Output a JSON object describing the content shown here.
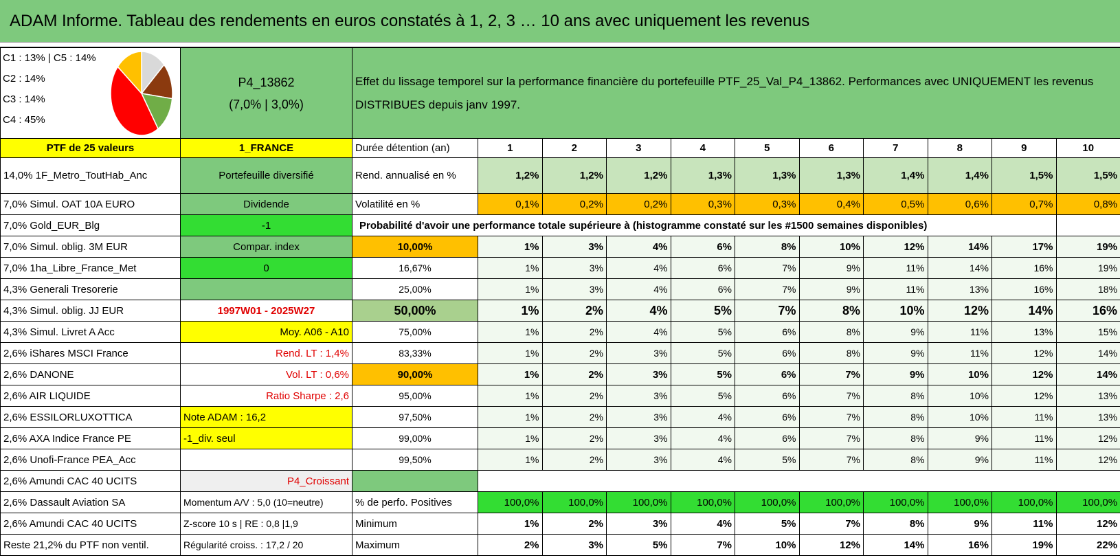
{
  "header": {
    "title": "ADAM Informe. Tableau des rendements en euros constatés à 1, 2, 3 … 10 ans avec uniquement les revenus"
  },
  "summary": {
    "legend": [
      "C1 : 13% | C5 : 14%",
      "C2 : 14%",
      "C3 : 14%",
      "C4 : 45%"
    ],
    "pie": {
      "values": [
        13,
        14,
        14,
        45,
        14
      ],
      "colors": [
        "#d9d9d9",
        "#8b3a0f",
        "#70ad47",
        "#ff0000",
        "#ffc000"
      ]
    },
    "code": "P4_13862",
    "params": "(7,0% | 3,0%)",
    "description": "Effet du lissage temporel sur la performance financière du portefeuille PTF_25_Val_P4_13862. Performances avec UNIQUEMENT les revenus DISTRIBUES depuis janv 1997."
  },
  "table": {
    "rows": [
      {
        "a": "PTF de 25 valeurs",
        "b": "1_FRANCE",
        "c": "Durée détention (an)",
        "values": [
          1,
          2,
          3,
          4,
          5,
          6,
          7,
          8,
          9,
          10
        ]
      },
      {
        "a": "14,0% 1F_Metro_ToutHab_Anc",
        "b": "Portefeuille diversifié",
        "c": "Rend. annualisé en %",
        "values": [
          "1,2%",
          "1,2%",
          "1,2%",
          "1,3%",
          "1,3%",
          "1,3%",
          "1,4%",
          "1,4%",
          "1,5%",
          "1,5%"
        ]
      },
      {
        "a": "7,0% Simul. OAT 10A EURO",
        "b": "Dividende",
        "c": "Volatilité en %",
        "values": [
          "0,1%",
          "0,2%",
          "0,2%",
          "0,3%",
          "0,3%",
          "0,4%",
          "0,5%",
          "0,6%",
          "0,7%",
          "0,8%"
        ]
      },
      {
        "a": "7,0% Gold_EUR_Blg",
        "b": "-1",
        "span": "Probabilité d'avoir une performance totale supérieure à (histogramme constaté sur les #1500 semaines disponibles)"
      },
      {
        "a": "7,0% Simul. oblig. 3M EUR",
        "b": "Compar. index",
        "c": "10,00%",
        "values": [
          "1%",
          "3%",
          "4%",
          "6%",
          "8%",
          "10%",
          "12%",
          "14%",
          "17%",
          "19%"
        ]
      },
      {
        "a": "7,0% 1ha_Libre_France_Met",
        "b": "0",
        "c": "16,67%",
        "values": [
          "1%",
          "3%",
          "4%",
          "6%",
          "7%",
          "9%",
          "11%",
          "14%",
          "16%",
          "19%"
        ]
      },
      {
        "a": "4,3% Generali Tresorerie",
        "c": "25,00%",
        "values": [
          "1%",
          "3%",
          "4%",
          "6%",
          "7%",
          "9%",
          "11%",
          "13%",
          "16%",
          "18%"
        ]
      },
      {
        "a": "4,3% Simul. oblig. JJ EUR",
        "b": "1997W01 - 2025W27",
        "c": "50,00%",
        "values": [
          "1%",
          "2%",
          "4%",
          "5%",
          "7%",
          "8%",
          "10%",
          "12%",
          "14%",
          "16%"
        ]
      },
      {
        "a": "4,3% Simul. Livret A Acc",
        "b": "Moy. A06 - A10",
        "c": "75,00%",
        "values": [
          "1%",
          "2%",
          "4%",
          "5%",
          "6%",
          "8%",
          "9%",
          "11%",
          "13%",
          "15%"
        ]
      },
      {
        "a": "2,6% iShares MSCI France",
        "b": "Rend. LT : 1,4%",
        "c": "83,33%",
        "values": [
          "1%",
          "2%",
          "3%",
          "5%",
          "6%",
          "8%",
          "9%",
          "11%",
          "12%",
          "14%"
        ]
      },
      {
        "a": "2,6% DANONE",
        "b": "Vol. LT : 0,6%",
        "c": "90,00%",
        "values": [
          "1%",
          "2%",
          "3%",
          "5%",
          "6%",
          "7%",
          "9%",
          "10%",
          "12%",
          "14%"
        ]
      },
      {
        "a": "2,6% AIR LIQUIDE",
        "b": "Ratio Sharpe : 2,6",
        "c": "95,00%",
        "values": [
          "1%",
          "2%",
          "3%",
          "5%",
          "6%",
          "7%",
          "8%",
          "10%",
          "12%",
          "13%"
        ]
      },
      {
        "a": "2,6% ESSILORLUXOTTICA",
        "b": "Note ADAM : 16,2",
        "c": "97,50%",
        "values": [
          "1%",
          "2%",
          "3%",
          "4%",
          "6%",
          "7%",
          "8%",
          "10%",
          "11%",
          "13%"
        ]
      },
      {
        "a": "2,6% AXA Indice France PE",
        "b": "-1_div. seul",
        "c": "99,00%",
        "values": [
          "1%",
          "2%",
          "3%",
          "4%",
          "6%",
          "7%",
          "8%",
          "9%",
          "11%",
          "12%"
        ]
      },
      {
        "a": "2,6% Unofi-France PEA_Acc",
        "c": "99,50%",
        "values": [
          "1%",
          "2%",
          "3%",
          "4%",
          "5%",
          "7%",
          "8%",
          "9%",
          "11%",
          "12%"
        ]
      },
      {
        "a": "2,6% Amundi CAC 40 UCITS",
        "b": "P4_Croissant"
      },
      {
        "a": "2,6% Dassault Aviation SA",
        "b": "Momentum A/V : 5,0 (10=neutre)",
        "c": "% de perfo. Positives",
        "values": [
          "100,0%",
          "100,0%",
          "100,0%",
          "100,0%",
          "100,0%",
          "100,0%",
          "100,0%",
          "100,0%",
          "100,0%",
          "100,0%"
        ]
      },
      {
        "a": "2,6% Amundi CAC 40 UCITS",
        "b": "Z-score 10 s | RE : 0,8 |1,9",
        "c": "Minimum",
        "values": [
          "1%",
          "2%",
          "3%",
          "4%",
          "5%",
          "7%",
          "8%",
          "9%",
          "11%",
          "12%"
        ]
      },
      {
        "a": "Reste 21,2% du PTF non ventil.",
        "b": "Régularité croiss. : 17,2 / 20",
        "c": "Maximum",
        "values": [
          "2%",
          "3%",
          "5%",
          "7%",
          "10%",
          "12%",
          "14%",
          "16%",
          "19%",
          "22%"
        ]
      }
    ]
  }
}
